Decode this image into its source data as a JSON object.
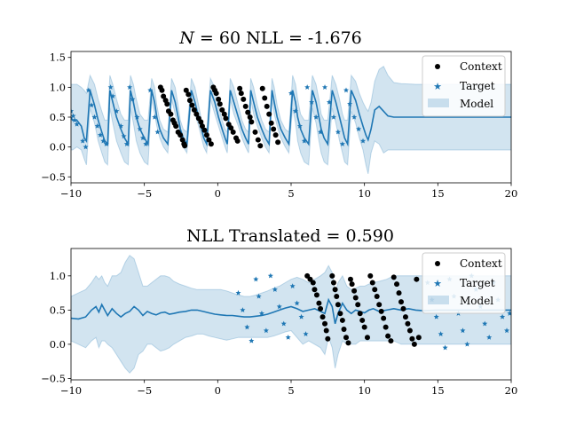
{
  "colors": {
    "model": "#1f77b4",
    "band": "#1f77b4",
    "context": "#000000",
    "target": "#1f77b4",
    "axes": "#000000",
    "background": "#ffffff"
  },
  "chart_data": [
    {
      "type": "scatter",
      "title": "N = 60   NLL = -1.676",
      "title_parts": {
        "var": "N",
        "eq": " = 60   NLL = -1.676"
      },
      "xlim": [
        -10,
        20
      ],
      "ylim": [
        -0.6,
        1.6
      ],
      "xticks": [
        -10,
        -5,
        0,
        5,
        10,
        15,
        20
      ],
      "xtick_labels": [
        "−10",
        "−5",
        "0",
        "5",
        "10",
        "15",
        "20"
      ],
      "yticks": [
        -0.5,
        0.0,
        0.5,
        1.0,
        1.5
      ],
      "ytick_labels": [
        "−0.5",
        "0.0",
        "0.5",
        "1.0",
        "1.5"
      ],
      "grid": false,
      "legend_position": "top-right",
      "legend": [
        "Context",
        "Target",
        "Model"
      ],
      "signal": {
        "kind": "sawtooth",
        "period": 1.6,
        "x_start": -10,
        "x_end": 10.3
      },
      "model_line": {
        "x": [
          -10,
          -9.9,
          -9.6,
          -9.3,
          -9.1,
          -8.95,
          -8.7,
          -8.4,
          -8.15,
          -7.9,
          -7.7,
          -7.5,
          -7.35,
          -7.15,
          -6.9,
          -6.6,
          -6.35,
          -6.1,
          -5.95,
          -5.75,
          -5.55,
          -5.3,
          -5.0,
          -4.75,
          -4.5,
          -4.3,
          -4.15,
          -3.95,
          -3.7,
          -3.4,
          -3.15,
          -2.9,
          -2.7,
          -2.55,
          -2.35,
          -2.1,
          -1.8,
          -1.55,
          -1.3,
          -1.1,
          -0.95,
          -0.75,
          -0.5,
          -0.2,
          0.05,
          0.3,
          0.5,
          0.65,
          0.85,
          1.1,
          1.4,
          1.65,
          1.9,
          2.1,
          2.25,
          2.45,
          2.7,
          3.0,
          3.25,
          3.5,
          3.7,
          3.85,
          4.05,
          4.3,
          4.6,
          4.85,
          5.1,
          5.3,
          5.45,
          5.65,
          5.9,
          6.2,
          6.45,
          6.7,
          6.9,
          7.05,
          7.25,
          7.5,
          7.8,
          8.05,
          8.3,
          8.5,
          8.65,
          8.85,
          9.1,
          9.4,
          9.65,
          9.9,
          10.1,
          10.25,
          10.45,
          10.7,
          11.0,
          11.3,
          11.6,
          12.0,
          12.5,
          13.5,
          15,
          17,
          20
        ],
        "y": [
          0.5,
          0.45,
          0.45,
          0.35,
          0.15,
          0.1,
          0.95,
          0.7,
          0.45,
          0.25,
          0.1,
          0.05,
          0.95,
          0.75,
          0.5,
          0.3,
          0.15,
          0.05,
          0.95,
          0.75,
          0.5,
          0.3,
          0.15,
          0.05,
          0.95,
          0.75,
          0.5,
          0.3,
          0.15,
          0.05,
          0.95,
          0.75,
          0.5,
          0.3,
          0.15,
          0.05,
          0.95,
          0.75,
          0.5,
          0.3,
          0.15,
          0.05,
          0.95,
          0.75,
          0.5,
          0.3,
          0.15,
          0.05,
          0.95,
          0.75,
          0.5,
          0.3,
          0.15,
          0.05,
          0.95,
          0.75,
          0.5,
          0.3,
          0.15,
          0.05,
          0.95,
          0.75,
          0.5,
          0.3,
          0.15,
          0.05,
          0.95,
          0.75,
          0.5,
          0.3,
          0.15,
          0.05,
          0.95,
          0.75,
          0.5,
          0.3,
          0.15,
          0.05,
          0.95,
          0.75,
          0.5,
          0.3,
          0.15,
          0.05,
          0.95,
          0.78,
          0.55,
          0.35,
          0.2,
          0.12,
          0.3,
          0.62,
          0.68,
          0.6,
          0.52,
          0.5,
          0.5,
          0.5,
          0.5,
          0.5,
          0.5
        ],
        "upper": [
          1.05,
          1.05,
          1.05,
          1.0,
          0.95,
          0.9,
          1.2,
          1.05,
          0.8,
          0.6,
          0.45,
          0.45,
          1.2,
          1.05,
          0.8,
          0.55,
          0.45,
          0.45,
          1.2,
          1.05,
          0.8,
          0.55,
          0.45,
          0.45,
          1.15,
          1.0,
          0.7,
          0.45,
          0.3,
          0.25,
          1.15,
          1.0,
          0.7,
          0.45,
          0.3,
          0.25,
          1.15,
          1.0,
          0.7,
          0.45,
          0.3,
          0.25,
          1.15,
          1.0,
          0.7,
          0.45,
          0.3,
          0.25,
          1.15,
          1.0,
          0.7,
          0.45,
          0.3,
          0.25,
          1.15,
          1.0,
          0.7,
          0.45,
          0.3,
          0.25,
          1.15,
          1.0,
          0.7,
          0.45,
          0.3,
          0.25,
          1.2,
          1.05,
          0.8,
          0.55,
          0.45,
          0.45,
          1.2,
          1.05,
          0.8,
          0.55,
          0.45,
          0.45,
          1.2,
          1.05,
          0.8,
          0.55,
          0.45,
          0.45,
          1.2,
          1.1,
          0.9,
          0.75,
          0.65,
          0.6,
          0.75,
          1.1,
          1.3,
          1.35,
          1.2,
          1.08,
          1.06,
          1.05,
          1.05,
          1.05,
          1.05
        ],
        "lower": [
          -0.05,
          -0.05,
          0.0,
          -0.05,
          -0.2,
          -0.3,
          0.65,
          0.4,
          0.1,
          -0.1,
          -0.25,
          -0.3,
          0.65,
          0.4,
          0.1,
          -0.1,
          -0.25,
          -0.3,
          0.65,
          0.4,
          0.1,
          -0.1,
          -0.25,
          -0.3,
          0.8,
          0.55,
          0.35,
          0.15,
          0.0,
          -0.1,
          0.8,
          0.55,
          0.35,
          0.15,
          0.0,
          -0.1,
          0.8,
          0.55,
          0.35,
          0.15,
          0.0,
          -0.1,
          0.8,
          0.55,
          0.35,
          0.15,
          0.0,
          -0.1,
          0.8,
          0.55,
          0.35,
          0.15,
          0.0,
          -0.1,
          0.8,
          0.55,
          0.35,
          0.15,
          0.0,
          -0.1,
          0.8,
          0.55,
          0.35,
          0.15,
          0.0,
          -0.1,
          0.65,
          0.4,
          0.1,
          -0.1,
          -0.25,
          -0.3,
          0.65,
          0.4,
          0.1,
          -0.1,
          -0.25,
          -0.3,
          0.65,
          0.4,
          0.1,
          -0.1,
          -0.25,
          -0.3,
          0.6,
          0.4,
          0.15,
          -0.05,
          -0.3,
          -0.45,
          -0.1,
          0.1,
          0.05,
          -0.1,
          -0.05,
          -0.05,
          -0.05,
          -0.05,
          -0.05,
          -0.05,
          -0.05
        ]
      },
      "context_points": {
        "x": [
          -3.9,
          -3.8,
          -3.7,
          -3.55,
          -3.45,
          -3.35,
          -3.2,
          -3.05,
          -2.95,
          -2.85,
          -2.7,
          -2.55,
          -2.4,
          -2.3,
          -2.25,
          -2.15,
          -2.0,
          -1.9,
          -1.75,
          -1.6,
          -1.45,
          -1.3,
          -1.15,
          -1.05,
          -0.9,
          -0.75,
          -0.6,
          -0.45,
          -0.3,
          -0.2,
          -0.1,
          0.05,
          0.15,
          0.3,
          0.45,
          0.55,
          0.75,
          0.9,
          1.05,
          1.25,
          1.35,
          1.5,
          1.6,
          1.75,
          1.9,
          2.05,
          2.2,
          2.3,
          2.55,
          2.75,
          2.9,
          3.05,
          3.2,
          3.35,
          3.5,
          3.65,
          3.8,
          3.95,
          4.1
        ],
        "y": [
          1.0,
          0.95,
          0.85,
          0.78,
          0.72,
          0.6,
          0.55,
          0.45,
          0.4,
          0.35,
          0.25,
          0.2,
          0.12,
          0.05,
          0.02,
          0.95,
          0.88,
          0.78,
          0.7,
          0.62,
          0.55,
          0.48,
          0.42,
          0.35,
          0.28,
          0.2,
          0.12,
          0.05,
          1.0,
          0.95,
          0.9,
          0.8,
          0.72,
          0.62,
          0.55,
          0.48,
          0.38,
          0.32,
          0.25,
          0.15,
          0.1,
          0.98,
          0.9,
          0.8,
          0.68,
          0.58,
          0.5,
          0.42,
          0.25,
          0.12,
          0.02,
          0.98,
          0.82,
          0.68,
          0.55,
          0.4,
          0.3,
          0.2,
          0.08
        ]
      },
      "target_points": {
        "x": [
          -10.0,
          -9.85,
          -9.75,
          -9.6,
          -9.2,
          -9.0,
          -8.8,
          -8.6,
          -8.4,
          -8.2,
          -8.0,
          -7.8,
          -7.6,
          -7.3,
          -7.15,
          -6.9,
          -6.6,
          -6.4,
          -6.2,
          -6.0,
          -5.8,
          -5.5,
          -5.3,
          -5.1,
          -4.9,
          -4.6,
          -4.3,
          -4.1,
          5.0,
          5.3,
          5.6,
          5.9,
          6.1,
          6.4,
          6.7,
          7.0,
          7.3,
          7.6,
          7.9,
          8.2,
          8.5,
          8.75,
          9.0,
          9.3,
          9.6,
          9.9
        ],
        "y": [
          0.6,
          0.52,
          0.45,
          0.38,
          0.1,
          0.0,
          0.95,
          0.7,
          0.5,
          0.35,
          0.2,
          0.1,
          0.05,
          1.0,
          0.85,
          0.6,
          0.35,
          0.18,
          0.05,
          1.0,
          0.8,
          0.5,
          0.3,
          0.15,
          0.05,
          0.95,
          0.5,
          0.25,
          0.9,
          0.6,
          0.35,
          0.1,
          1.0,
          0.75,
          0.5,
          0.25,
          1.0,
          0.75,
          0.5,
          0.25,
          0.05,
          0.95,
          0.72,
          0.5,
          0.3,
          0.1
        ]
      }
    },
    {
      "type": "scatter",
      "title": "NLL Translated = 0.590",
      "xlim": [
        -10,
        20
      ],
      "ylim": [
        -0.52,
        1.4
      ],
      "xticks": [
        -10,
        -5,
        0,
        5,
        10,
        15,
        20
      ],
      "xtick_labels": [
        "−10",
        "−5",
        "0",
        "5",
        "10",
        "15",
        "20"
      ],
      "yticks": [
        -0.5,
        0.0,
        0.5,
        1.0
      ],
      "ytick_labels": [
        "−0.5",
        "0.0",
        "0.5",
        "1.0"
      ],
      "grid": false,
      "legend_position": "top-right",
      "legend": [
        "Context",
        "Target",
        "Model"
      ],
      "model_line": {
        "x": [
          -10,
          -9.5,
          -9.0,
          -8.6,
          -8.3,
          -8.1,
          -7.9,
          -7.7,
          -7.5,
          -7.2,
          -6.9,
          -6.6,
          -6.3,
          -6.0,
          -5.7,
          -5.4,
          -5.1,
          -4.8,
          -4.5,
          -4.2,
          -3.9,
          -3.6,
          -3.3,
          -3.0,
          -2.6,
          -2.2,
          -1.8,
          -1.4,
          -1.0,
          -0.6,
          -0.2,
          0.2,
          0.6,
          1.0,
          1.4,
          1.8,
          2.2,
          2.6,
          3.0,
          3.4,
          3.8,
          4.2,
          4.6,
          5.0,
          5.4,
          5.8,
          6.2,
          6.6,
          7.0,
          7.3,
          7.55,
          7.8,
          8.0,
          8.2,
          8.5,
          8.8,
          9.1,
          9.4,
          9.7,
          10.0,
          10.3,
          10.6,
          11.0,
          11.5,
          12.0,
          12.5,
          13.0,
          13.5,
          14.0,
          15.0,
          16.0,
          17.0,
          18.0,
          20.0
        ],
        "y": [
          0.38,
          0.37,
          0.4,
          0.5,
          0.55,
          0.47,
          0.58,
          0.5,
          0.42,
          0.52,
          0.45,
          0.4,
          0.45,
          0.48,
          0.55,
          0.5,
          0.42,
          0.48,
          0.45,
          0.43,
          0.46,
          0.47,
          0.44,
          0.45,
          0.47,
          0.48,
          0.5,
          0.5,
          0.48,
          0.46,
          0.44,
          0.43,
          0.42,
          0.42,
          0.41,
          0.4,
          0.4,
          0.41,
          0.42,
          0.44,
          0.47,
          0.5,
          0.53,
          0.55,
          0.52,
          0.48,
          0.5,
          0.52,
          0.48,
          0.45,
          0.65,
          0.55,
          0.3,
          0.45,
          0.6,
          0.5,
          0.45,
          0.5,
          0.48,
          0.46,
          0.5,
          0.52,
          0.48,
          0.5,
          0.52,
          0.5,
          0.52,
          0.5,
          0.49,
          0.5,
          0.5,
          0.5,
          0.5,
          0.5
        ],
        "upper": [
          0.7,
          0.75,
          0.8,
          0.9,
          1.0,
          0.95,
          1.0,
          0.9,
          0.85,
          1.0,
          1.0,
          1.05,
          1.2,
          1.3,
          1.25,
          1.05,
          0.85,
          0.85,
          0.9,
          0.95,
          1.0,
          1.0,
          0.98,
          0.92,
          0.88,
          0.85,
          0.82,
          0.8,
          0.8,
          0.8,
          0.8,
          0.8,
          0.78,
          0.75,
          0.72,
          0.7,
          0.7,
          0.72,
          0.75,
          0.78,
          0.82,
          0.85,
          0.9,
          0.95,
          0.98,
          0.95,
          0.9,
          0.95,
          1.0,
          1.05,
          1.15,
          1.05,
          0.75,
          0.9,
          1.0,
          0.85,
          0.8,
          0.82,
          0.85,
          0.85,
          0.88,
          0.9,
          0.92,
          0.95,
          1.0,
          1.0,
          1.0,
          1.0,
          1.0,
          1.0,
          1.0,
          1.0,
          1.0,
          1.0
        ],
        "lower": [
          0.05,
          0.0,
          -0.05,
          0.05,
          0.1,
          -0.05,
          0.05,
          0.05,
          0.0,
          -0.05,
          -0.15,
          -0.25,
          -0.35,
          -0.42,
          -0.35,
          -0.15,
          -0.1,
          0.0,
          0.0,
          -0.05,
          -0.1,
          -0.08,
          -0.05,
          0.0,
          0.05,
          0.1,
          0.12,
          0.15,
          0.15,
          0.12,
          0.1,
          0.08,
          0.06,
          0.08,
          0.1,
          0.1,
          0.1,
          0.1,
          0.1,
          0.1,
          0.12,
          0.15,
          0.18,
          0.2,
          0.1,
          0.0,
          0.05,
          0.0,
          -0.05,
          -0.15,
          0.1,
          -0.05,
          -0.35,
          -0.15,
          0.05,
          0.0,
          0.0,
          0.0,
          0.05,
          0.05,
          0.05,
          0.05,
          0.05,
          0.05,
          0.05,
          0.0,
          0.0,
          0.0,
          0.0,
          0.0,
          0.0,
          0.0,
          0.0,
          0.0
        ]
      },
      "context_points": {
        "x": [
          6.1,
          6.3,
          6.5,
          6.6,
          6.75,
          6.9,
          7.0,
          7.15,
          7.3,
          7.4,
          7.5,
          7.8,
          7.9,
          8.0,
          8.1,
          8.2,
          8.35,
          8.5,
          8.6,
          8.75,
          8.9,
          9.05,
          9.15,
          9.3,
          9.4,
          9.55,
          9.7,
          9.85,
          10.0,
          10.2,
          10.4,
          10.55,
          10.7,
          10.85,
          11.0,
          11.15,
          11.3,
          11.45,
          11.6,
          11.8,
          12.0,
          12.2,
          12.35,
          12.5,
          12.65,
          12.8,
          12.95,
          13.1,
          13.25,
          13.4,
          13.55,
          13.7
        ],
        "y": [
          1.0,
          0.95,
          0.9,
          0.8,
          0.72,
          0.6,
          0.52,
          0.4,
          0.3,
          0.2,
          0.08,
          1.0,
          0.9,
          0.8,
          0.7,
          0.58,
          0.45,
          0.35,
          0.22,
          0.1,
          0.02,
          0.95,
          0.88,
          0.78,
          0.68,
          0.58,
          0.45,
          0.35,
          0.25,
          0.1,
          1.0,
          0.9,
          0.8,
          0.7,
          0.58,
          0.48,
          0.38,
          0.25,
          0.12,
          0.05,
          0.98,
          0.88,
          0.75,
          0.62,
          0.52,
          0.4,
          0.3,
          0.2,
          0.08,
          0.0,
          0.95,
          0.1
        ]
      },
      "target_points": {
        "x": [
          1.4,
          1.7,
          2.0,
          2.3,
          2.6,
          2.8,
          3.0,
          3.3,
          3.6,
          3.9,
          4.2,
          4.5,
          4.8,
          5.1,
          5.4,
          5.7,
          6.0,
          14.3,
          14.6,
          14.9,
          15.2,
          15.5,
          15.8,
          16.1,
          16.4,
          16.7,
          17.0,
          17.3,
          17.6,
          17.9,
          18.2,
          18.5,
          18.8,
          19.1,
          19.4,
          19.7,
          19.9
        ],
        "y": [
          0.75,
          0.5,
          0.25,
          0.05,
          0.95,
          0.7,
          0.45,
          0.2,
          1.0,
          0.8,
          0.55,
          0.3,
          0.1,
          0.85,
          0.6,
          0.4,
          0.15,
          0.9,
          0.65,
          0.4,
          0.15,
          -0.05,
          0.95,
          0.7,
          0.45,
          0.2,
          0.0,
          1.0,
          0.8,
          0.55,
          0.3,
          0.1,
          0.9,
          0.65,
          0.4,
          0.2,
          0.45
        ]
      }
    }
  ]
}
